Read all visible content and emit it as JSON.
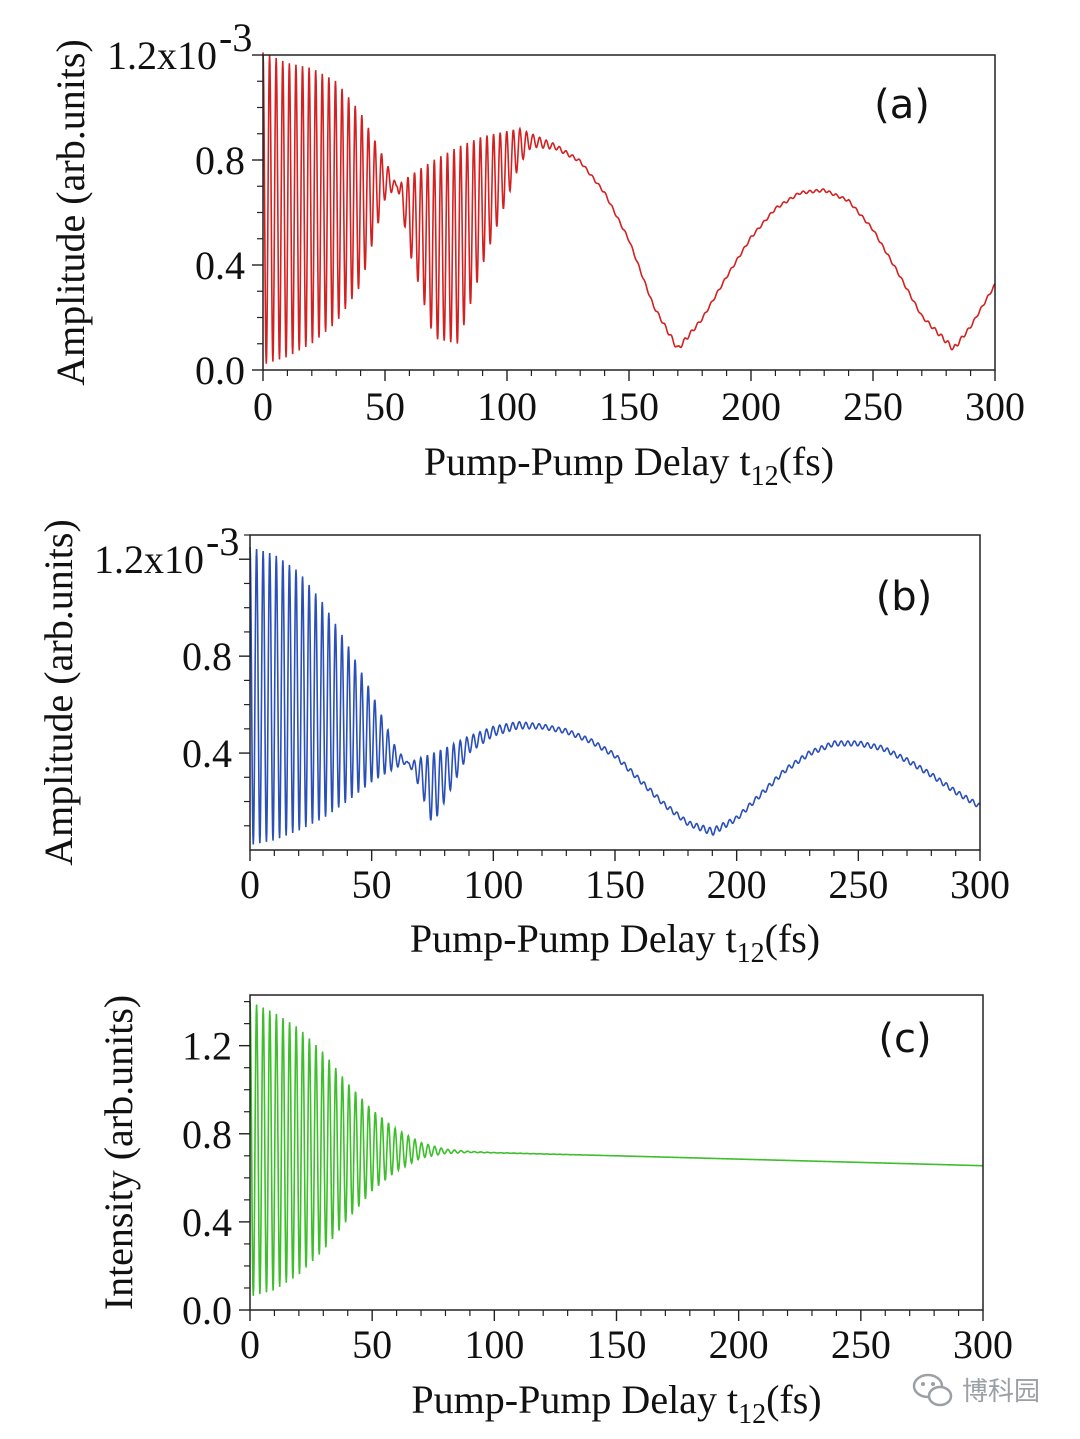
{
  "chart_data": [
    {
      "type": "line",
      "panel_label": "(a)",
      "xlabel": "Pump-Pump Delay t12(fs)",
      "xlabel_main": "Pump-Pump Delay t",
      "xlabel_sub": "12",
      "xlabel_tail": "(fs)",
      "ylabel": "Amplitude (arb.units)",
      "xlim": [
        0,
        300
      ],
      "ylim": [
        0,
        0.0012
      ],
      "x_ticks": [
        "0",
        "50",
        "100",
        "150",
        "200",
        "250",
        "300"
      ],
      "y_ticks": [
        {
          "value": 0.0,
          "label": "0.0"
        },
        {
          "value": 0.0004,
          "label": "0.4"
        },
        {
          "value": 0.0008,
          "label": "0.8"
        },
        {
          "value": 0.0012,
          "label": "1.2x10",
          "exp": "-3"
        }
      ],
      "color": "#d42020",
      "envelope": {
        "x": [
          0,
          10,
          20,
          30,
          40,
          50,
          55,
          60,
          70,
          80,
          90,
          100,
          105,
          110,
          120,
          130,
          140,
          150,
          160,
          170,
          180,
          190,
          200,
          210,
          220,
          230,
          240,
          250,
          260,
          270,
          283,
          290,
          300
        ],
        "upper": [
          0.00121,
          0.00117,
          0.00115,
          0.0011,
          0.00098,
          0.0008,
          0.0007,
          0.00074,
          0.0008,
          0.00085,
          0.00089,
          0.00091,
          0.00092,
          0.0009,
          0.00086,
          0.0008,
          0.00068,
          0.0005,
          0.00025,
          9e-05,
          0.0002,
          0.00036,
          0.00051,
          0.00062,
          0.00068,
          0.00069,
          0.00065,
          0.00054,
          0.00038,
          0.00021,
          9e-05,
          0.00017,
          0.00033
        ],
        "lower": [
          2e-05,
          5e-05,
          0.0001,
          0.00018,
          0.00032,
          0.00065,
          0.0007,
          0.00045,
          0.00012,
          0.0001,
          0.0004,
          0.00065,
          0.00078,
          0.00085,
          0.00084,
          0.00079,
          0.00067,
          0.00049,
          0.00024,
          7e-05,
          0.00019,
          0.00035,
          0.0005,
          0.00061,
          0.00067,
          0.00068,
          0.00064,
          0.00053,
          0.00037,
          0.0002,
          7e-05,
          0.00016,
          0.00032
        ]
      },
      "oscillation_period_fs": 2.7
    },
    {
      "type": "line",
      "panel_label": "(b)",
      "xlabel": "Pump-Pump Delay t12(fs)",
      "xlabel_main": "Pump-Pump Delay t",
      "xlabel_sub": "12",
      "xlabel_tail": "(fs)",
      "ylabel": "Amplitude (arb.units)",
      "xlim": [
        0,
        300
      ],
      "ylim": [
        0.0,
        0.0013
      ],
      "x_ticks": [
        "0",
        "50",
        "100",
        "150",
        "200",
        "250",
        "300"
      ],
      "y_ticks": [
        {
          "value": 0.0004,
          "label": "0.4"
        },
        {
          "value": 0.0008,
          "label": "0.8"
        },
        {
          "value": 0.0012,
          "label": "1.2x10",
          "exp": "-3"
        }
      ],
      "color": "#2a4fb8",
      "envelope": {
        "x": [
          0,
          10,
          20,
          30,
          40,
          50,
          60,
          65,
          70,
          75,
          80,
          90,
          100,
          110,
          120,
          130,
          140,
          150,
          160,
          170,
          180,
          190,
          200,
          210,
          220,
          230,
          240,
          250,
          260,
          270,
          280,
          290,
          300
        ],
        "upper": [
          0.00125,
          0.00122,
          0.00115,
          0.00102,
          0.00085,
          0.00065,
          0.00042,
          0.00036,
          0.00038,
          0.0004,
          0.00042,
          0.00047,
          0.00051,
          0.00053,
          0.00052,
          0.0005,
          0.00046,
          0.0004,
          0.0003,
          0.0002,
          0.00012,
          9e-05,
          0.00014,
          0.00024,
          0.00034,
          0.00041,
          0.00045,
          0.00045,
          0.00043,
          0.00038,
          0.00032,
          0.00025,
          0.00019
        ],
        "lower": [
          2e-05,
          4e-05,
          8e-05,
          0.00013,
          0.0002,
          0.00028,
          0.00034,
          0.00036,
          0.00025,
          0.0001,
          0.0002,
          0.0004,
          0.00047,
          0.0005,
          0.0005,
          0.00048,
          0.00044,
          0.00038,
          0.00028,
          0.00018,
          0.0001,
          6e-05,
          0.00012,
          0.00022,
          0.00032,
          0.00039,
          0.00043,
          0.00043,
          0.00041,
          0.00036,
          0.0003,
          0.00023,
          0.00017
        ]
      },
      "oscillation_period_fs": 2.7
    },
    {
      "type": "line",
      "panel_label": "(c)",
      "xlabel": "Pump-Pump Delay t12(fs)",
      "xlabel_main": "Pump-Pump Delay t",
      "xlabel_sub": "12",
      "xlabel_tail": "(fs)",
      "ylabel": "Intensity (arb.units)",
      "xlim": [
        0,
        300
      ],
      "ylim": [
        0.0,
        1.43
      ],
      "x_ticks": [
        "0",
        "50",
        "100",
        "150",
        "200",
        "250",
        "300"
      ],
      "y_ticks": [
        {
          "value": 0.0,
          "label": "0.0"
        },
        {
          "value": 0.4,
          "label": "0.4"
        },
        {
          "value": 0.8,
          "label": "0.8"
        },
        {
          "value": 1.2,
          "label": "1.2"
        }
      ],
      "color": "#3cbf2a",
      "envelope": {
        "x": [
          0,
          10,
          20,
          30,
          40,
          50,
          60,
          70,
          80,
          90,
          100,
          150,
          200,
          250,
          300
        ],
        "upper": [
          1.4,
          1.35,
          1.28,
          1.17,
          1.03,
          0.91,
          0.82,
          0.76,
          0.73,
          0.72,
          0.715,
          0.7,
          0.685,
          0.67,
          0.655
        ],
        "lower": [
          0.06,
          0.09,
          0.16,
          0.27,
          0.41,
          0.54,
          0.63,
          0.69,
          0.71,
          0.715,
          0.713,
          0.7,
          0.685,
          0.67,
          0.655
        ]
      },
      "oscillation_period_fs": 2.7
    }
  ],
  "watermark": {
    "text": "博科园",
    "icon": "wechat-icon"
  }
}
